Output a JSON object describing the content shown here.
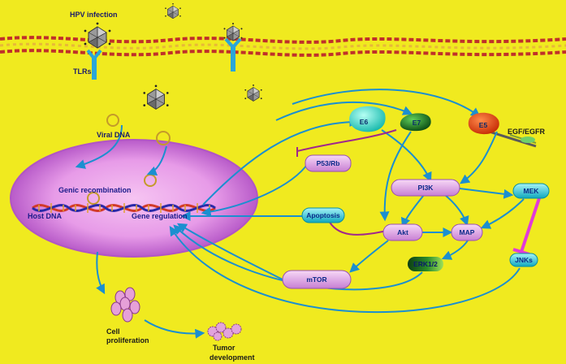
{
  "labels": {
    "hpv_infection": "HPV infection",
    "tlrs": "TLRs",
    "viral_dna": "Viral DNA",
    "genic_recombination": "Genic recombination",
    "host_dna": "Host DNA",
    "gene_regulation": "Gene regulation",
    "cell_proliferation_1": "Cell",
    "cell_proliferation_2": "proliferation",
    "tumor_development_1": "Tumor",
    "tumor_development_2": "development",
    "egf_egfr": "EGF/EGFR"
  },
  "nodes": {
    "e6": "E6",
    "e7": "E7",
    "e5": "E5",
    "p53_rb": "P53/Rb",
    "pi3k": "PI3K",
    "mek": "MEK",
    "apoptosis": "Apoptosis",
    "akt": "Akt",
    "map": "MAP",
    "erk": "ERK1/2",
    "jnks": "JNKs",
    "mtor": "mTOR"
  },
  "colors": {
    "background": "#f0ea1f",
    "arrow": "#1b8fd0",
    "inhibit": "#a0288c",
    "nucleus": "#e79be8",
    "e6": "#3fd7c8",
    "e7": "#0f7a22",
    "e5": "#e84a12",
    "pill": "#e3a3e6",
    "mek": "#1fc6d8"
  }
}
